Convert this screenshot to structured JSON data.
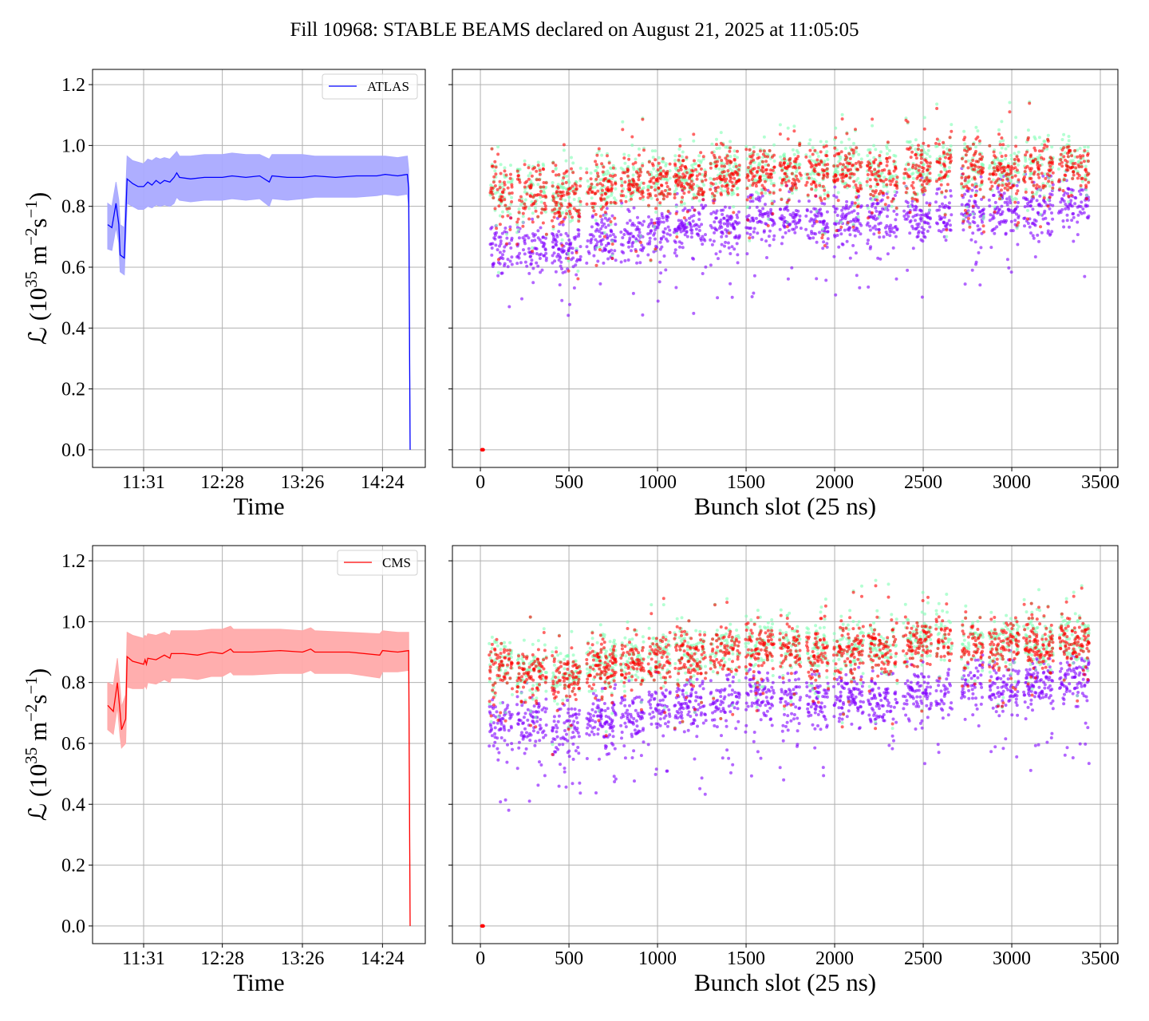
{
  "title": "Fill 10968: STABLE BEAMS declared on August 21, 2025 at 11:05:05",
  "ylabel_parts": [
    "ℒ (10",
    "35",
    " m",
    "−2",
    "s",
    "−1",
    ")"
  ],
  "colors": {
    "atlas": "#0000ff",
    "atlas_band": "#aaaaff",
    "cms": "#ff0000",
    "cms_band": "#ffaaaa",
    "purple": "#8000ff",
    "green": "#80ffb4",
    "red": "#ff0000",
    "grid": "#b0b0b0"
  },
  "chart_data": [
    {
      "id": "atlas-time",
      "type": "line",
      "xlabel": "Time",
      "legend": {
        "label": "ATLAS",
        "placement": "top-right"
      },
      "xlim": [
        654,
        895
      ],
      "ylim": [
        -0.058,
        1.25
      ],
      "grid": true,
      "x_unit": "minutes since 00:00",
      "xticks": [
        {
          "value": 691,
          "label": "11:31"
        },
        {
          "value": 748,
          "label": "12:28"
        },
        {
          "value": 806,
          "label": "13:26"
        },
        {
          "value": 864,
          "label": "14:24"
        }
      ],
      "yticks": [
        {
          "value": 0,
          "label": "0.0"
        },
        {
          "value": 0.2,
          "label": "0.2"
        },
        {
          "value": 0.4,
          "label": "0.4"
        },
        {
          "value": 0.6,
          "label": "0.6"
        },
        {
          "value": 0.8,
          "label": "0.8"
        },
        {
          "value": 1.0,
          "label": "1.0"
        },
        {
          "value": 1.2,
          "label": "1.2"
        }
      ],
      "points": [
        [
          665,
          0.74,
          0.66,
          0.81
        ],
        [
          668,
          0.73,
          0.655,
          0.8
        ],
        [
          671,
          0.81,
          0.73,
          0.88
        ],
        [
          673,
          0.74,
          0.68,
          0.82
        ],
        [
          674,
          0.64,
          0.585,
          0.74
        ],
        [
          677,
          0.63,
          0.575,
          0.73
        ],
        [
          679,
          0.89,
          0.81,
          0.965
        ],
        [
          683,
          0.875,
          0.8,
          0.95
        ],
        [
          687,
          0.865,
          0.79,
          0.945
        ],
        [
          691,
          0.865,
          0.79,
          0.94
        ],
        [
          694,
          0.88,
          0.8,
          0.955
        ],
        [
          697,
          0.87,
          0.795,
          0.95
        ],
        [
          700,
          0.885,
          0.805,
          0.96
        ],
        [
          703,
          0.875,
          0.8,
          0.955
        ],
        [
          706,
          0.885,
          0.805,
          0.96
        ],
        [
          710,
          0.88,
          0.8,
          0.955
        ],
        [
          713,
          0.895,
          0.81,
          0.97
        ],
        [
          715,
          0.91,
          0.83,
          0.98
        ],
        [
          717,
          0.895,
          0.82,
          0.965
        ],
        [
          725,
          0.89,
          0.815,
          0.965
        ],
        [
          735,
          0.895,
          0.82,
          0.97
        ],
        [
          748,
          0.895,
          0.82,
          0.97
        ],
        [
          755,
          0.9,
          0.825,
          0.975
        ],
        [
          765,
          0.895,
          0.82,
          0.97
        ],
        [
          775,
          0.9,
          0.825,
          0.97
        ],
        [
          782,
          0.88,
          0.8,
          0.955
        ],
        [
          784,
          0.9,
          0.825,
          0.97
        ],
        [
          795,
          0.895,
          0.82,
          0.97
        ],
        [
          806,
          0.895,
          0.825,
          0.97
        ],
        [
          815,
          0.9,
          0.83,
          0.965
        ],
        [
          830,
          0.895,
          0.83,
          0.965
        ],
        [
          845,
          0.9,
          0.83,
          0.965
        ],
        [
          860,
          0.9,
          0.835,
          0.965
        ],
        [
          866,
          0.905,
          0.84,
          0.965
        ],
        [
          875,
          0.9,
          0.835,
          0.96
        ],
        [
          882,
          0.905,
          0.84,
          0.965
        ],
        [
          883,
          0.86,
          0.8,
          0.92
        ],
        [
          884,
          0,
          0,
          0
        ]
      ]
    },
    {
      "id": "atlas-bunch",
      "type": "scatter",
      "xlabel": "Bunch slot (25 ns)",
      "xlim": [
        -158,
        3599
      ],
      "ylim": [
        -0.058,
        1.25
      ],
      "grid": true,
      "xticks": [
        {
          "value": 0,
          "label": "0"
        },
        {
          "value": 500,
          "label": "500"
        },
        {
          "value": 1000,
          "label": "1000"
        },
        {
          "value": 1500,
          "label": "1500"
        },
        {
          "value": 2000,
          "label": "2000"
        },
        {
          "value": 2500,
          "label": "2500"
        },
        {
          "value": 3000,
          "label": "3000"
        },
        {
          "value": 3500,
          "label": "3500"
        }
      ],
      "yticks": [
        0,
        0.2,
        0.4,
        0.6,
        0.8,
        1.0,
        1.2
      ],
      "seed": 11,
      "spread": 0.045,
      "zero_points": [
        [
          8,
          0
        ],
        [
          12,
          0
        ],
        [
          16,
          0
        ]
      ],
      "trains": [
        [
          50,
          180,
          0.85,
          0.67
        ],
        [
          207,
          373,
          0.84,
          0.67
        ],
        [
          405,
          567,
          0.83,
          0.66
        ],
        [
          600,
          765,
          0.86,
          0.69
        ],
        [
          793,
          923,
          0.88,
          0.7
        ],
        [
          945,
          1071,
          0.88,
          0.72
        ],
        [
          1094,
          1274,
          0.89,
          0.73
        ],
        [
          1297,
          1463,
          0.9,
          0.74
        ],
        [
          1497,
          1660,
          0.91,
          0.76
        ],
        [
          1690,
          1810,
          0.91,
          0.76
        ],
        [
          1838,
          1964,
          0.9,
          0.75
        ],
        [
          1995,
          2162,
          0.91,
          0.76
        ],
        [
          2183,
          2354,
          0.9,
          0.76
        ],
        [
          2387,
          2545,
          0.92,
          0.77
        ],
        [
          2572,
          2662,
          0.94,
          0.77
        ],
        [
          2716,
          2842,
          0.92,
          0.79
        ],
        [
          2873,
          3040,
          0.92,
          0.79
        ],
        [
          3067,
          3234,
          0.92,
          0.8
        ],
        [
          3265,
          3436,
          0.93,
          0.81
        ]
      ]
    },
    {
      "id": "cms-time",
      "type": "line",
      "xlabel": "Time",
      "legend": {
        "label": "CMS",
        "placement": "top-right"
      },
      "xlim": [
        654,
        895
      ],
      "ylim": [
        -0.058,
        1.25
      ],
      "grid": true,
      "x_unit": "minutes since 00:00",
      "xticks": [
        {
          "value": 691,
          "label": "11:31"
        },
        {
          "value": 748,
          "label": "12:28"
        },
        {
          "value": 806,
          "label": "13:26"
        },
        {
          "value": 864,
          "label": "14:24"
        }
      ],
      "yticks": [
        {
          "value": 0,
          "label": "0.0"
        },
        {
          "value": 0.2,
          "label": "0.2"
        },
        {
          "value": 0.4,
          "label": "0.4"
        },
        {
          "value": 0.6,
          "label": "0.6"
        },
        {
          "value": 0.8,
          "label": "0.8"
        },
        {
          "value": 1.0,
          "label": "1.0"
        },
        {
          "value": 1.2,
          "label": "1.2"
        }
      ],
      "points": [
        [
          665,
          0.725,
          0.645,
          0.8
        ],
        [
          669,
          0.705,
          0.63,
          0.79
        ],
        [
          672,
          0.8,
          0.72,
          0.88
        ],
        [
          674,
          0.7,
          0.62,
          0.78
        ],
        [
          675,
          0.645,
          0.585,
          0.72
        ],
        [
          678,
          0.68,
          0.6,
          0.76
        ],
        [
          679,
          0.885,
          0.785,
          0.965
        ],
        [
          683,
          0.87,
          0.78,
          0.955
        ],
        [
          687,
          0.865,
          0.78,
          0.95
        ],
        [
          691,
          0.86,
          0.78,
          0.945
        ],
        [
          692,
          0.875,
          0.79,
          0.955
        ],
        [
          693,
          0.86,
          0.78,
          0.95
        ],
        [
          694,
          0.88,
          0.8,
          0.96
        ],
        [
          700,
          0.875,
          0.795,
          0.955
        ],
        [
          706,
          0.89,
          0.81,
          0.965
        ],
        [
          710,
          0.88,
          0.8,
          0.955
        ],
        [
          711,
          0.895,
          0.815,
          0.97
        ],
        [
          720,
          0.895,
          0.815,
          0.97
        ],
        [
          730,
          0.89,
          0.81,
          0.97
        ],
        [
          740,
          0.9,
          0.82,
          0.975
        ],
        [
          748,
          0.895,
          0.82,
          0.975
        ],
        [
          754,
          0.91,
          0.835,
          0.985
        ],
        [
          756,
          0.9,
          0.825,
          0.975
        ],
        [
          770,
          0.9,
          0.825,
          0.975
        ],
        [
          790,
          0.905,
          0.83,
          0.975
        ],
        [
          806,
          0.9,
          0.83,
          0.97
        ],
        [
          812,
          0.91,
          0.84,
          0.98
        ],
        [
          815,
          0.9,
          0.83,
          0.97
        ],
        [
          840,
          0.9,
          0.83,
          0.965
        ],
        [
          862,
          0.89,
          0.815,
          0.96
        ],
        [
          864,
          0.905,
          0.835,
          0.97
        ],
        [
          875,
          0.9,
          0.835,
          0.965
        ],
        [
          883,
          0.905,
          0.84,
          0.965
        ],
        [
          884,
          0,
          0,
          0
        ]
      ]
    },
    {
      "id": "cms-bunch",
      "type": "scatter",
      "xlabel": "Bunch slot (25 ns)",
      "xlim": [
        -158,
        3599
      ],
      "ylim": [
        -0.058,
        1.25
      ],
      "grid": true,
      "xticks": [
        {
          "value": 0,
          "label": "0"
        },
        {
          "value": 500,
          "label": "500"
        },
        {
          "value": 1000,
          "label": "1000"
        },
        {
          "value": 1500,
          "label": "1500"
        },
        {
          "value": 2000,
          "label": "2000"
        },
        {
          "value": 2500,
          "label": "2500"
        },
        {
          "value": 3000,
          "label": "3000"
        },
        {
          "value": 3500,
          "label": "3500"
        }
      ],
      "yticks": [
        0,
        0.2,
        0.4,
        0.6,
        0.8,
        1.0,
        1.2
      ],
      "seed": 29,
      "spread": 0.045,
      "zero_points": [
        [
          8,
          0
        ],
        [
          12,
          0
        ],
        [
          16,
          0
        ]
      ],
      "trains": [
        [
          50,
          180,
          0.85,
          0.66
        ],
        [
          207,
          373,
          0.83,
          0.66
        ],
        [
          405,
          567,
          0.82,
          0.65
        ],
        [
          600,
          765,
          0.85,
          0.68
        ],
        [
          793,
          923,
          0.87,
          0.69
        ],
        [
          945,
          1071,
          0.88,
          0.71
        ],
        [
          1094,
          1274,
          0.89,
          0.72
        ],
        [
          1297,
          1463,
          0.9,
          0.73
        ],
        [
          1497,
          1660,
          0.91,
          0.75
        ],
        [
          1690,
          1810,
          0.91,
          0.75
        ],
        [
          1838,
          1964,
          0.9,
          0.74
        ],
        [
          1995,
          2162,
          0.91,
          0.75
        ],
        [
          2183,
          2354,
          0.9,
          0.75
        ],
        [
          2387,
          2545,
          0.92,
          0.77
        ],
        [
          2572,
          2662,
          0.94,
          0.77
        ],
        [
          2716,
          2842,
          0.92,
          0.78
        ],
        [
          2873,
          3040,
          0.92,
          0.78
        ],
        [
          3067,
          3234,
          0.92,
          0.79
        ],
        [
          3265,
          3436,
          0.93,
          0.81
        ]
      ]
    }
  ]
}
